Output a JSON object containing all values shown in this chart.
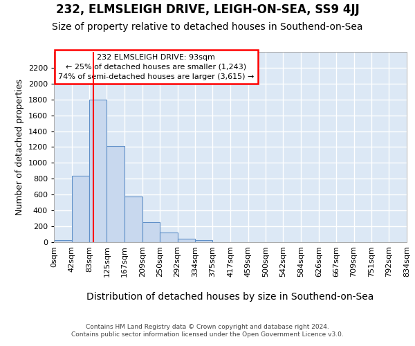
{
  "title": "232, ELMSLEIGH DRIVE, LEIGH-ON-SEA, SS9 4JJ",
  "subtitle": "Size of property relative to detached houses in Southend-on-Sea",
  "xlabel": "Distribution of detached houses by size in Southend-on-Sea",
  "ylabel": "Number of detached properties",
  "footer_line1": "Contains HM Land Registry data © Crown copyright and database right 2024.",
  "footer_line2": "Contains public sector information licensed under the Open Government Licence v3.0.",
  "annotation_line1": "232 ELMSLEIGH DRIVE: 93sqm",
  "annotation_line2": "← 25% of detached houses are smaller (1,243)",
  "annotation_line3": "74% of semi-detached houses are larger (3,615) →",
  "bin_edges": [
    0,
    42,
    83,
    125,
    167,
    209,
    250,
    292,
    334,
    375,
    417,
    459,
    500,
    542,
    584,
    626,
    667,
    709,
    751,
    792,
    834
  ],
  "bar_heights": [
    30,
    840,
    1800,
    1210,
    580,
    255,
    120,
    45,
    30,
    0,
    0,
    0,
    0,
    0,
    0,
    0,
    0,
    0,
    0,
    0
  ],
  "bar_color": "#c8d8ee",
  "bar_edge_color": "#6090c8",
  "red_line_x": 93,
  "ylim": [
    0,
    2400
  ],
  "yticks": [
    0,
    200,
    400,
    600,
    800,
    1000,
    1200,
    1400,
    1600,
    1800,
    2000,
    2200
  ],
  "background_color": "#ffffff",
  "plot_bg_color": "#dce8f5",
  "grid_color": "#ffffff",
  "title_fontsize": 12,
  "subtitle_fontsize": 10,
  "tick_fontsize": 8,
  "ylabel_fontsize": 9,
  "xlabel_fontsize": 10
}
